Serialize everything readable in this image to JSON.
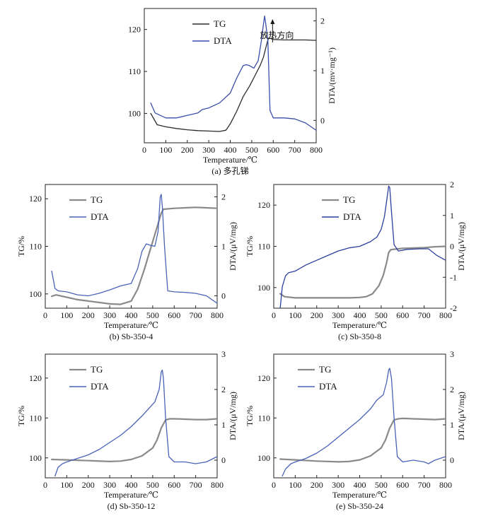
{
  "chart_data": [
    {
      "id": "a",
      "type": "line",
      "caption": "(a) 多孔锑",
      "xlabel": "Temperature/℃",
      "ylabel_left": "",
      "ylabel_right": "DTA/(mv·mg⁻¹)",
      "xlim": [
        0,
        800
      ],
      "ylim_left": [
        93,
        125
      ],
      "ylim_right": [
        -0.45,
        2.25
      ],
      "xticks": [
        0,
        100,
        200,
        300,
        400,
        500,
        600,
        700,
        800
      ],
      "yticks_left": [
        100,
        110,
        120
      ],
      "yticks_right": [
        0,
        1,
        2
      ],
      "legend_position": "top-center",
      "annotation": "放热方向",
      "series": [
        {
          "name": "TG",
          "axis": "left",
          "color": "#2b2b2b",
          "x": [
            30,
            60,
            100,
            150,
            200,
            250,
            300,
            350,
            380,
            400,
            430,
            460,
            490,
            520,
            540,
            555,
            565,
            575,
            580,
            600,
            650,
            700,
            750,
            800
          ],
          "y": [
            100,
            97.3,
            96.8,
            96.4,
            96.1,
            95.9,
            95.8,
            95.7,
            96.0,
            97.5,
            100.5,
            104,
            106.5,
            109.5,
            111.5,
            113.5,
            115.5,
            117.5,
            118,
            117.6,
            117.5,
            117.5,
            117.5,
            117.4
          ]
        },
        {
          "name": "DTA",
          "axis": "right",
          "color": "#3a4da8",
          "x": [
            30,
            50,
            100,
            150,
            200,
            250,
            270,
            300,
            350,
            400,
            430,
            460,
            475,
            490,
            510,
            530,
            545,
            555,
            560,
            565,
            575,
            585,
            600,
            650,
            700,
            750,
            800
          ],
          "y": [
            0.35,
            0.15,
            0.05,
            0.05,
            0.1,
            0.15,
            0.22,
            0.25,
            0.35,
            0.55,
            0.85,
            1.1,
            1.12,
            1.1,
            1.05,
            1.2,
            1.6,
            1.95,
            2.1,
            1.95,
            1.6,
            0.2,
            0.05,
            0.05,
            0.03,
            -0.05,
            -0.2
          ]
        }
      ]
    },
    {
      "id": "b",
      "type": "line",
      "caption": "(b) Sb-350-4",
      "xlabel": "Temperature/℃",
      "ylabel_left": "TG/%",
      "ylabel_right": "DTA/(μV/mg)",
      "xlim": [
        0,
        800
      ],
      "ylim_left": [
        97,
        123
      ],
      "ylim_right": [
        -0.25,
        2.25
      ],
      "xticks": [
        0,
        100,
        200,
        300,
        400,
        500,
        600,
        700,
        800
      ],
      "yticks_left": [
        100,
        110,
        120
      ],
      "yticks_right": [
        0,
        1,
        2
      ],
      "legend_position": "top-left",
      "annotation": "",
      "series": [
        {
          "name": "TG",
          "axis": "left",
          "color": "#8a8a8a",
          "x": [
            30,
            50,
            100,
            150,
            200,
            250,
            300,
            350,
            400,
            430,
            460,
            490,
            520,
            540,
            550,
            600,
            650,
            700,
            750,
            800
          ],
          "y": [
            99.5,
            99.8,
            99.3,
            98.8,
            98.5,
            98.2,
            97.9,
            97.8,
            98.5,
            101,
            105,
            109.5,
            114,
            117,
            117.8,
            118,
            118.1,
            118.2,
            118.1,
            118
          ],
          "width": 2.2
        },
        {
          "name": "DTA",
          "axis": "right",
          "color": "#4a62b8",
          "x": [
            30,
            45,
            60,
            100,
            150,
            200,
            250,
            300,
            350,
            400,
            430,
            450,
            470,
            490,
            510,
            525,
            535,
            540,
            545,
            555,
            570,
            600,
            650,
            700,
            750,
            800
          ],
          "y": [
            0.5,
            0.15,
            0.1,
            0.08,
            0.02,
            0.0,
            0.05,
            0.12,
            0.2,
            0.25,
            0.55,
            0.9,
            1.05,
            1.02,
            1.0,
            1.3,
            2.0,
            2.05,
            1.8,
            1.0,
            0.1,
            0.08,
            0.07,
            0.05,
            0.0,
            -0.15
          ]
        }
      ]
    },
    {
      "id": "c",
      "type": "line",
      "caption": "(c) Sb-350-8",
      "xlabel": "Temperature/℃",
      "ylabel_left": "TG/%",
      "ylabel_right": "DTA/(μV/mg)",
      "xlim": [
        0,
        800
      ],
      "ylim_left": [
        95,
        125
      ],
      "ylim_right": [
        -2,
        2
      ],
      "xticks": [
        0,
        100,
        200,
        300,
        400,
        500,
        600,
        700,
        800
      ],
      "yticks_left": [
        100,
        110,
        120
      ],
      "yticks_right": [
        -2,
        -1,
        0,
        1,
        2
      ],
      "legend_position": "top-center",
      "annotation": "",
      "series": [
        {
          "name": "TG",
          "axis": "left",
          "color": "#8a8a8a",
          "x": [
            30,
            50,
            100,
            150,
            200,
            250,
            300,
            350,
            400,
            430,
            460,
            490,
            510,
            525,
            535,
            545,
            560,
            600,
            650,
            700,
            750,
            800
          ],
          "y": [
            98.5,
            97.8,
            97.5,
            97.5,
            97.5,
            97.5,
            97.5,
            97.5,
            97.6,
            97.8,
            98.5,
            100.5,
            103,
            106,
            108.5,
            109.2,
            109.3,
            109.5,
            109.6,
            109.7,
            109.9,
            110
          ],
          "width": 2.2
        },
        {
          "name": "DTA",
          "axis": "right",
          "color": "#2c3f9e",
          "x": [
            30,
            40,
            55,
            70,
            100,
            150,
            200,
            250,
            300,
            350,
            400,
            450,
            480,
            500,
            515,
            525,
            535,
            540,
            548,
            560,
            580,
            620,
            680,
            720,
            760,
            800
          ],
          "y": [
            -2,
            -1.3,
            -0.95,
            -0.85,
            -0.8,
            -0.6,
            -0.45,
            -0.3,
            -0.15,
            -0.05,
            0.0,
            0.15,
            0.3,
            0.55,
            0.95,
            1.45,
            1.95,
            1.9,
            1.1,
            0.05,
            -0.15,
            -0.1,
            -0.08,
            -0.08,
            -0.3,
            -0.45
          ]
        }
      ]
    },
    {
      "id": "d",
      "type": "line",
      "caption": "(d) Sb-350-12",
      "xlabel": "Temperature/℃",
      "ylabel_left": "TG/%",
      "ylabel_right": "DTA/(μV/mg)",
      "xlim": [
        0,
        800
      ],
      "ylim_left": [
        95,
        126
      ],
      "ylim_right": [
        -0.5,
        3
      ],
      "xticks": [
        0,
        100,
        200,
        300,
        400,
        500,
        600,
        700,
        800
      ],
      "yticks_left": [
        100,
        110,
        120
      ],
      "yticks_right": [
        0,
        1,
        2,
        3
      ],
      "legend_position": "top-left",
      "annotation": "",
      "series": [
        {
          "name": "TG",
          "axis": "left",
          "color": "#8a8a8a",
          "x": [
            30,
            100,
            200,
            300,
            350,
            400,
            450,
            500,
            520,
            540,
            560,
            580,
            600,
            650,
            700,
            750,
            800
          ],
          "y": [
            99.6,
            99.5,
            99.3,
            99.1,
            99.2,
            99.6,
            100.5,
            102.5,
            104.5,
            107.5,
            109.5,
            109.8,
            109.8,
            109.7,
            109.6,
            109.6,
            109.8
          ],
          "width": 2.2
        },
        {
          "name": "DTA",
          "axis": "right",
          "color": "#4a62b8",
          "x": [
            45,
            60,
            80,
            100,
            150,
            200,
            250,
            300,
            350,
            400,
            450,
            480,
            510,
            530,
            540,
            545,
            550,
            560,
            575,
            600,
            650,
            700,
            750,
            800
          ],
          "y": [
            -0.45,
            -0.2,
            -0.1,
            -0.05,
            0.05,
            0.15,
            0.3,
            0.5,
            0.7,
            0.95,
            1.25,
            1.45,
            1.65,
            2.0,
            2.5,
            2.55,
            2.3,
            1.2,
            0.1,
            -0.05,
            -0.05,
            -0.1,
            -0.05,
            0.1
          ]
        }
      ]
    },
    {
      "id": "e",
      "type": "line",
      "caption": "(e) Sb-350-24",
      "xlabel": "Temperature/℃",
      "ylabel_left": "TG/%",
      "ylabel_right": "DTA/(μV/mg)",
      "xlim": [
        0,
        800
      ],
      "ylim_left": [
        95,
        126
      ],
      "ylim_right": [
        -0.5,
        3
      ],
      "xticks": [
        0,
        100,
        200,
        300,
        400,
        500,
        600,
        700,
        800
      ],
      "yticks_left": [
        100,
        110,
        120
      ],
      "yticks_right": [
        0,
        1,
        2,
        3
      ],
      "legend_position": "top-left",
      "annotation": "",
      "series": [
        {
          "name": "TG",
          "axis": "left",
          "color": "#8a8a8a",
          "x": [
            30,
            100,
            200,
            300,
            350,
            400,
            450,
            500,
            520,
            540,
            560,
            580,
            600,
            650,
            700,
            750,
            800
          ],
          "y": [
            99.7,
            99.5,
            99.2,
            99.0,
            99.1,
            99.5,
            100.5,
            102.5,
            104.5,
            107.5,
            109.5,
            109.8,
            109.9,
            109.8,
            109.7,
            109.6,
            109.8
          ],
          "width": 2.2
        },
        {
          "name": "DTA",
          "axis": "right",
          "color": "#4a62b8",
          "x": [
            40,
            55,
            80,
            100,
            150,
            200,
            250,
            300,
            350,
            400,
            450,
            480,
            510,
            525,
            535,
            540,
            548,
            560,
            575,
            600,
            650,
            700,
            720,
            750,
            800
          ],
          "y": [
            -0.45,
            -0.25,
            -0.1,
            -0.05,
            0.05,
            0.2,
            0.4,
            0.65,
            0.9,
            1.15,
            1.45,
            1.7,
            1.85,
            2.2,
            2.55,
            2.6,
            2.3,
            1.2,
            0.1,
            -0.05,
            0.0,
            -0.05,
            -0.1,
            0.0,
            0.1
          ]
        }
      ]
    }
  ]
}
